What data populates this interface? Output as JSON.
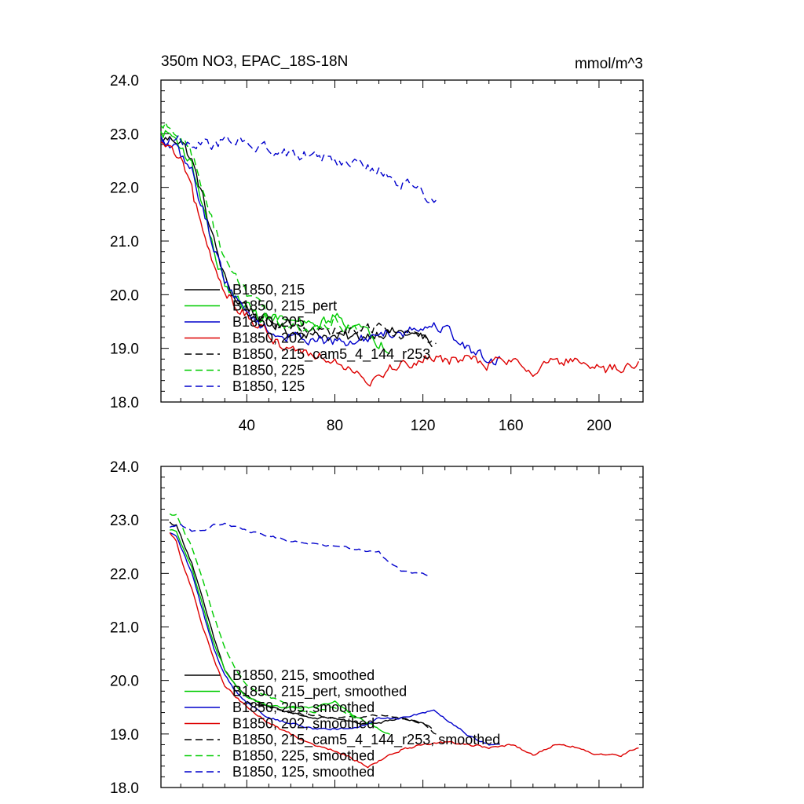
{
  "colors": {
    "black": "#000000",
    "green": "#00cc00",
    "blue": "#0000cc",
    "red": "#dd0000"
  },
  "chart_data": [
    {
      "type": "line",
      "title": "350m NO3, EPAC_18S-18N",
      "units": "mmol/m^3",
      "xlim": [
        1,
        220
      ],
      "ylim": [
        18.0,
        24.0
      ],
      "xticks": [
        "40",
        "80",
        "120",
        "160",
        "200"
      ],
      "yticks": [
        "18.0",
        "19.0",
        "20.0",
        "21.0",
        "22.0",
        "23.0",
        "24.0"
      ],
      "series": [
        {
          "name": "B1850, 215",
          "color": "black",
          "dash": false,
          "x": [
            1,
            5,
            10,
            15,
            20,
            25,
            30,
            35,
            40,
            45,
            50,
            60,
            70,
            80,
            90,
            100,
            110,
            120,
            124
          ],
          "y": [
            22.9,
            22.9,
            22.9,
            22.5,
            21.8,
            21.0,
            20.3,
            19.9,
            19.8,
            19.6,
            19.5,
            19.3,
            19.3,
            19.2,
            19.2,
            19.3,
            19.3,
            19.2,
            19.1
          ]
        },
        {
          "name": "B1850, 215_pert",
          "color": "green",
          "dash": false,
          "x": [
            1,
            5,
            10,
            15,
            20,
            25,
            30,
            35,
            40,
            45,
            50,
            60,
            70,
            80,
            90,
            100,
            105
          ],
          "y": [
            23.0,
            23.0,
            22.8,
            22.4,
            21.7,
            20.8,
            20.2,
            19.9,
            19.8,
            19.6,
            19.6,
            19.5,
            19.4,
            19.6,
            19.4,
            19.1,
            19.0
          ]
        },
        {
          "name": "B1850, 205",
          "color": "blue",
          "dash": false,
          "x": [
            1,
            5,
            10,
            15,
            20,
            25,
            30,
            35,
            40,
            45,
            50,
            60,
            70,
            80,
            90,
            100,
            110,
            120,
            130,
            140,
            150,
            155
          ],
          "y": [
            22.8,
            22.8,
            22.6,
            22.3,
            21.6,
            20.9,
            20.3,
            19.9,
            19.7,
            19.5,
            19.3,
            19.2,
            19.2,
            19.1,
            19.1,
            19.3,
            19.3,
            19.4,
            19.4,
            19.0,
            18.8,
            18.8
          ]
        },
        {
          "name": "B1850, 202",
          "color": "red",
          "dash": false,
          "x": [
            1,
            5,
            10,
            15,
            20,
            25,
            30,
            35,
            40,
            45,
            50,
            60,
            70,
            80,
            90,
            95,
            100,
            110,
            120,
            130,
            140,
            150,
            160,
            170,
            180,
            190,
            200,
            210,
            218
          ],
          "y": [
            22.8,
            22.7,
            22.5,
            21.9,
            21.2,
            20.5,
            20.1,
            19.8,
            19.6,
            19.4,
            19.2,
            19.0,
            18.9,
            18.8,
            18.6,
            18.4,
            18.5,
            18.7,
            18.8,
            18.8,
            18.8,
            18.7,
            18.8,
            18.6,
            18.8,
            18.7,
            18.6,
            18.6,
            18.7
          ]
        },
        {
          "name": "B1850, 215_cam5_4_144_r253",
          "color": "black",
          "dash": true,
          "x": [
            40,
            50,
            60,
            70,
            80,
            90,
            100,
            110,
            120,
            126
          ],
          "y": [
            19.6,
            19.5,
            19.4,
            19.3,
            19.3,
            19.3,
            19.4,
            19.3,
            19.2,
            19.0
          ]
        },
        {
          "name": "B1850, 225",
          "color": "green",
          "dash": true,
          "x": [
            1,
            5,
            10,
            15,
            20,
            25,
            30,
            35,
            40,
            45,
            50,
            60,
            70,
            80,
            90
          ],
          "y": [
            23.1,
            23.2,
            23.0,
            22.6,
            22.0,
            21.3,
            20.7,
            20.3,
            20.0,
            19.8,
            19.6,
            19.4,
            19.3,
            19.5,
            19.3
          ]
        },
        {
          "name": "B1850, 125",
          "color": "blue",
          "dash": true,
          "x": [
            1,
            5,
            10,
            15,
            20,
            25,
            30,
            40,
            50,
            60,
            70,
            80,
            90,
            100,
            105,
            110,
            115,
            120,
            126
          ],
          "y": [
            22.9,
            22.9,
            22.9,
            22.8,
            22.8,
            22.8,
            22.9,
            22.8,
            22.7,
            22.6,
            22.6,
            22.5,
            22.5,
            22.3,
            22.2,
            22.1,
            22.0,
            21.9,
            21.7
          ]
        }
      ]
    },
    {
      "type": "line",
      "title": "",
      "units": "",
      "xlim": [
        1,
        220
      ],
      "ylim": [
        18.0,
        24.0
      ],
      "xticks": [],
      "yticks": [
        "18.0",
        "19.0",
        "20.0",
        "21.0",
        "22.0",
        "23.0",
        "24.0"
      ],
      "series": [
        {
          "name": "B1850, 215, smoothed",
          "color": "black",
          "dash": false,
          "x": [
            5,
            8,
            10,
            15,
            20,
            25,
            30,
            35,
            40,
            50,
            60,
            70,
            80,
            90,
            100,
            110,
            120,
            124
          ],
          "y": [
            22.95,
            22.9,
            22.7,
            22.2,
            21.5,
            20.8,
            20.2,
            19.9,
            19.7,
            19.5,
            19.4,
            19.3,
            19.3,
            19.2,
            19.2,
            19.3,
            19.2,
            19.1
          ]
        },
        {
          "name": "B1850, 215_pert, smoothed",
          "color": "green",
          "dash": false,
          "x": [
            5,
            8,
            10,
            15,
            20,
            25,
            30,
            35,
            40,
            50,
            60,
            70,
            80,
            90,
            100,
            105
          ],
          "y": [
            22.8,
            22.8,
            22.6,
            22.1,
            21.4,
            20.7,
            20.2,
            19.9,
            19.7,
            19.5,
            19.5,
            19.5,
            19.6,
            19.3,
            19.1,
            19.0
          ]
        },
        {
          "name": "B1850, 205, smoothed",
          "color": "blue",
          "dash": false,
          "x": [
            5,
            8,
            10,
            15,
            20,
            25,
            30,
            35,
            40,
            50,
            60,
            70,
            80,
            90,
            100,
            110,
            120,
            125,
            130,
            140,
            150,
            155
          ],
          "y": [
            22.75,
            22.7,
            22.5,
            22.0,
            21.3,
            20.6,
            20.1,
            19.8,
            19.6,
            19.3,
            19.2,
            19.1,
            19.1,
            19.1,
            19.3,
            19.3,
            19.4,
            19.45,
            19.3,
            19.0,
            18.8,
            18.8
          ]
        },
        {
          "name": "B1850, 202, smoothed",
          "color": "red",
          "dash": false,
          "x": [
            5,
            8,
            10,
            15,
            20,
            25,
            30,
            35,
            40,
            50,
            60,
            70,
            80,
            90,
            95,
            100,
            110,
            120,
            130,
            140,
            150,
            160,
            170,
            180,
            190,
            200,
            210,
            218
          ],
          "y": [
            22.75,
            22.6,
            22.3,
            21.7,
            21.0,
            20.4,
            19.9,
            19.7,
            19.5,
            19.2,
            19.0,
            18.8,
            18.7,
            18.5,
            18.4,
            18.5,
            18.7,
            18.8,
            18.85,
            18.8,
            18.75,
            18.8,
            18.6,
            18.8,
            18.75,
            18.6,
            18.6,
            18.75
          ]
        },
        {
          "name": "B1850, 215_cam5_4_144_r253, smoothed",
          "color": "black",
          "dash": true,
          "x": [
            40,
            50,
            60,
            70,
            80,
            90,
            100,
            110,
            120,
            126
          ],
          "y": [
            19.6,
            19.5,
            19.4,
            19.35,
            19.3,
            19.3,
            19.35,
            19.3,
            19.2,
            19.0
          ]
        },
        {
          "name": "B1850, 225, smoothed",
          "color": "green",
          "dash": true,
          "x": [
            5,
            8,
            10,
            15,
            20,
            25,
            30,
            35,
            40,
            50,
            60,
            70,
            80,
            90
          ],
          "y": [
            23.1,
            23.1,
            22.9,
            22.5,
            21.9,
            21.2,
            20.6,
            20.2,
            19.9,
            19.7,
            19.5,
            19.4,
            19.5,
            19.3
          ]
        },
        {
          "name": "B1850, 125, smoothed",
          "color": "blue",
          "dash": true,
          "x": [
            5,
            10,
            15,
            20,
            25,
            30,
            40,
            50,
            60,
            70,
            80,
            90,
            100,
            105,
            110,
            115,
            120,
            123
          ],
          "y": [
            22.85,
            22.9,
            22.8,
            22.8,
            22.9,
            22.95,
            22.8,
            22.7,
            22.6,
            22.55,
            22.5,
            22.45,
            22.4,
            22.2,
            22.05,
            22.0,
            22.0,
            21.95
          ]
        }
      ]
    }
  ]
}
